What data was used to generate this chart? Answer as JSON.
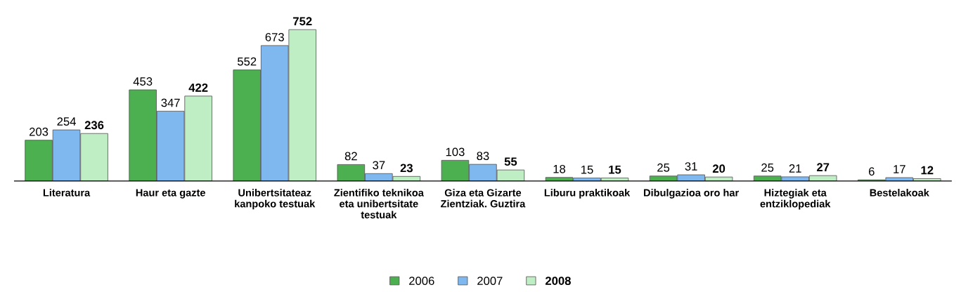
{
  "chart_data": {
    "type": "bar",
    "categories": [
      "Literatura",
      "Haur eta gazte",
      "Unibertsitateaz kanpoko testuak",
      "Zientifiko teknikoa eta unibertsitate testuak",
      "Giza eta Gizarte Zientziak. Guztira",
      "Liburu praktikoak",
      "Dibulgazioa oro har",
      "Hiztegiak eta entziklopediak",
      "Bestelakoak"
    ],
    "series": [
      {
        "name": "2006",
        "color": "#4caf50",
        "values": [
          203,
          453,
          552,
          82,
          103,
          18,
          25,
          25,
          6
        ]
      },
      {
        "name": "2007",
        "color": "#7fb8ee",
        "values": [
          254,
          347,
          673,
          37,
          83,
          15,
          31,
          21,
          17
        ]
      },
      {
        "name": "2008",
        "color": "#bfeec4",
        "values": [
          236,
          422,
          752,
          23,
          55,
          15,
          20,
          27,
          12
        ]
      }
    ],
    "data_labels": true,
    "legend": "bottom",
    "grid": false
  }
}
